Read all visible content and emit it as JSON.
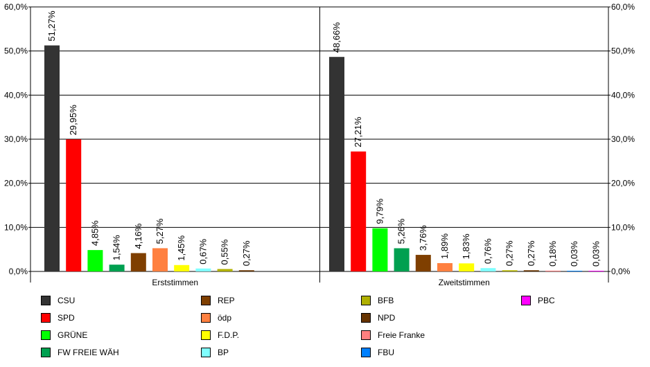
{
  "chart_data": {
    "type": "bar",
    "ylim": [
      0,
      60
    ],
    "y_ticks": [
      "0,0%",
      "10,0%",
      "20,0%",
      "30,0%",
      "40,0%",
      "50,0%",
      "60,0%"
    ],
    "y_tick_values": [
      0,
      10,
      20,
      30,
      40,
      50,
      60
    ],
    "grid": true,
    "legend_position": "bottom",
    "groups": [
      {
        "name": "Erststimmen",
        "bars": [
          {
            "party": "CSU",
            "value": 51.27,
            "label": "51,27%"
          },
          {
            "party": "SPD",
            "value": 29.95,
            "label": "29,95%"
          },
          {
            "party": "GRÜNE",
            "value": 4.85,
            "label": "4,85%"
          },
          {
            "party": "FW FREIE WÄH",
            "value": 1.54,
            "label": "1,54%"
          },
          {
            "party": "REP",
            "value": 4.16,
            "label": "4,16%"
          },
          {
            "party": "ödp",
            "value": 5.27,
            "label": "5,27%"
          },
          {
            "party": "F.D.P.",
            "value": 1.45,
            "label": "1,45%"
          },
          {
            "party": "BP",
            "value": 0.67,
            "label": "0,67%"
          },
          {
            "party": "BFB",
            "value": 0.55,
            "label": "0,55%"
          },
          {
            "party": "NPD",
            "value": 0.27,
            "label": "0,27%"
          }
        ]
      },
      {
        "name": "Zweitstimmen",
        "bars": [
          {
            "party": "CSU",
            "value": 48.66,
            "label": "48,66%"
          },
          {
            "party": "SPD",
            "value": 27.21,
            "label": "27,21%"
          },
          {
            "party": "GRÜNE",
            "value": 9.79,
            "label": "9,79%"
          },
          {
            "party": "FW FREIE WÄH",
            "value": 5.26,
            "label": "5,26%"
          },
          {
            "party": "REP",
            "value": 3.76,
            "label": "3,76%"
          },
          {
            "party": "ödp",
            "value": 1.89,
            "label": "1,89%"
          },
          {
            "party": "F.D.P.",
            "value": 1.83,
            "label": "1,83%"
          },
          {
            "party": "BP",
            "value": 0.76,
            "label": "0,76%"
          },
          {
            "party": "BFB",
            "value": 0.27,
            "label": "0,27%"
          },
          {
            "party": "NPD",
            "value": 0.27,
            "label": "0,27%"
          },
          {
            "party": "Freie Franke",
            "value": 0.18,
            "label": "0,18%"
          },
          {
            "party": "FBU",
            "value": 0.03,
            "label": "0,03%"
          },
          {
            "party": "PBC",
            "value": 0.03,
            "label": "0,03%"
          }
        ]
      }
    ],
    "legend": [
      {
        "name": "CSU",
        "color": "#333333"
      },
      {
        "name": "SPD",
        "color": "#ff0000"
      },
      {
        "name": "GRÜNE",
        "color": "#00ff00"
      },
      {
        "name": "FW FREIE WÄH",
        "color": "#00a050"
      },
      {
        "name": "REP",
        "color": "#7f3f00"
      },
      {
        "name": "ödp",
        "color": "#ff8040"
      },
      {
        "name": "F.D.P.",
        "color": "#ffff00"
      },
      {
        "name": "BP",
        "color": "#80ffff"
      },
      {
        "name": "BFB",
        "color": "#b0b000"
      },
      {
        "name": "NPD",
        "color": "#663300"
      },
      {
        "name": "Freie Franke",
        "color": "#ff8080"
      },
      {
        "name": "FBU",
        "color": "#0080ff"
      },
      {
        "name": "PBC",
        "color": "#ff00ff"
      }
    ]
  }
}
